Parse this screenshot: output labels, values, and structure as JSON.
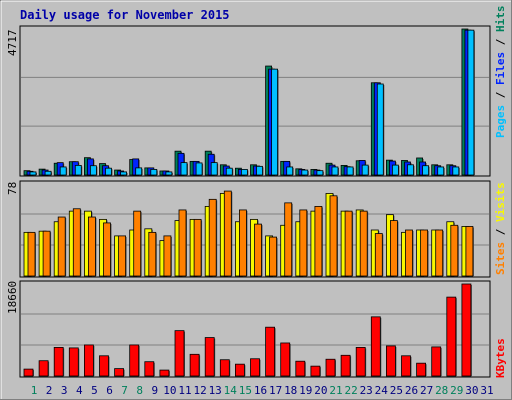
{
  "chart_data": {
    "type": "bar",
    "title": "Daily usage for November 2015",
    "days": [
      "1",
      "2",
      "3",
      "4",
      "5",
      "6",
      "7",
      "8",
      "9",
      "10",
      "11",
      "12",
      "13",
      "14",
      "15",
      "16",
      "17",
      "18",
      "19",
      "20",
      "21",
      "22",
      "23",
      "24",
      "25",
      "26",
      "27",
      "28",
      "29",
      "30",
      "31"
    ],
    "weekend_days": [
      "1",
      "7",
      "8",
      "14",
      "15",
      "21",
      "22",
      "28",
      "29"
    ],
    "panels": [
      {
        "id": "hits-files-pages",
        "ymax_label": "4717",
        "ylim": [
          0,
          4717
        ],
        "series": [
          {
            "name": "Hits",
            "color": "#00805c",
            "values": [
              140,
              190,
              380,
              430,
              560,
              370,
              160,
              500,
              230,
              130,
              770,
              440,
              770,
              330,
              220,
              330,
              3520,
              440,
              200,
              180,
              380,
              310,
              460,
              2980,
              480,
              470,
              550,
              330,
              330,
              4717,
              0
            ]
          },
          {
            "name": "Files",
            "color": "#0024fe",
            "values": [
              120,
              160,
              400,
              430,
              520,
              300,
              130,
              520,
              230,
              130,
              700,
              440,
              670,
              290,
              180,
              290,
              3420,
              440,
              180,
              160,
              320,
              270,
              470,
              2980,
              450,
              420,
              420,
              300,
              300,
              4680,
              0
            ]
          },
          {
            "name": "Pages",
            "color": "#00c0ff",
            "values": [
              100,
              120,
              260,
              310,
              300,
              220,
              100,
              230,
              180,
              100,
              400,
              390,
              400,
              220,
              180,
              280,
              3420,
              260,
              160,
              140,
              260,
              260,
              320,
              2940,
              320,
              330,
              300,
              260,
              260,
              4680,
              0
            ]
          }
        ],
        "side_label_parts": [
          {
            "text": "Pages",
            "color": "#00c0ff"
          },
          {
            "text": " / ",
            "color": "#000000"
          },
          {
            "text": "Files",
            "color": "#0024fe"
          },
          {
            "text": " / ",
            "color": "#000000"
          },
          {
            "text": "Hits",
            "color": "#00805c"
          }
        ]
      },
      {
        "id": "visits-sites",
        "ymax_label": "78",
        "ylim": [
          0,
          78
        ],
        "series": [
          {
            "name": "Visits",
            "color": "#f8f800",
            "values": [
              37,
              38,
              46,
              55,
              55,
              48,
              34,
              39,
              40,
              30,
              47,
              48,
              59,
              70,
              46,
              48,
              34,
              43,
              46,
              55,
              70,
              55,
              56,
              39,
              52,
              37,
              39,
              39,
              46,
              42,
              0
            ]
          },
          {
            "name": "Sites",
            "color": "#ff8000",
            "values": [
              37,
              38,
              50,
              57,
              50,
              45,
              34,
              55,
              37,
              34,
              56,
              48,
              65,
              72,
              56,
              44,
              33,
              62,
              56,
              59,
              68,
              55,
              55,
              36,
              47,
              39,
              39,
              39,
              43,
              42,
              0
            ]
          }
        ],
        "side_label_parts": [
          {
            "text": "Sites",
            "color": "#ff8000"
          },
          {
            "text": " / ",
            "color": "#000000"
          },
          {
            "text": "Visits",
            "color": "#f8f800"
          }
        ]
      },
      {
        "id": "kbytes",
        "ymax_label": "18660",
        "ylim": [
          0,
          18660
        ],
        "series": [
          {
            "name": "KBytes",
            "color": "#ff0000",
            "values": [
              1400,
              3100,
              5800,
              5700,
              6300,
              4100,
              1500,
              6300,
              2900,
              1200,
              9200,
              4400,
              7800,
              3300,
              2400,
              3500,
              9900,
              6700,
              3000,
              2000,
              3400,
              4200,
              5800,
              12000,
              6100,
              4100,
              2600,
              5900,
              16000,
              18660,
              0
            ]
          }
        ],
        "side_label_parts": [
          {
            "text": "KBytes",
            "color": "#ff0000"
          }
        ]
      }
    ],
    "colors": {
      "panel_bg": "#c0c0c0",
      "gridline": "#808080",
      "weekday_label": "#000080",
      "weekend_label": "#00805c",
      "bar_outline": "#000000"
    }
  }
}
